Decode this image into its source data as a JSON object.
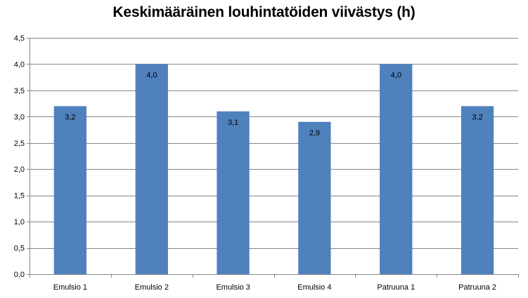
{
  "chart_data": {
    "type": "bar",
    "title": "Keskimääräinen louhintatöiden viivästys (h)",
    "xlabel": "",
    "ylabel": "",
    "categories": [
      "Emulsio 1",
      "Emulsio 2",
      "Emulsio 3",
      "Emulsio 4",
      "Patruuna 1",
      "Patruuna 2"
    ],
    "values": [
      3.2,
      4.0,
      3.1,
      2.9,
      4.0,
      3.2
    ],
    "data_labels": [
      "3,2",
      "4,0",
      "3,1",
      "2,9",
      "4,0",
      "3,2"
    ],
    "ylim": [
      0,
      4.5
    ],
    "yticks": [
      0,
      0.5,
      1.0,
      1.5,
      2.0,
      2.5,
      3.0,
      3.5,
      4.0,
      4.5
    ],
    "ytick_labels": [
      "0,0",
      "0,5",
      "1,0",
      "1,5",
      "2,0",
      "2,5",
      "3,0",
      "3,5",
      "4,0",
      "4,5"
    ],
    "grid": true,
    "legend": "none",
    "colors": {
      "bar": "#4F81BD",
      "grid": "#868686",
      "axis": "#868686"
    }
  }
}
